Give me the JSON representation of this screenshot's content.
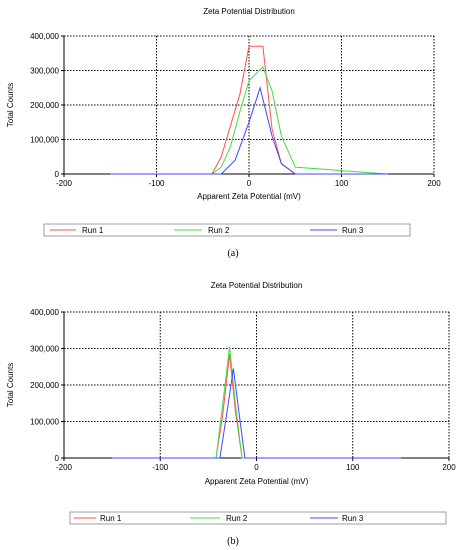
{
  "panels": [
    {
      "label": "(a)"
    },
    {
      "label": "(b)"
    }
  ],
  "chart_data": [
    {
      "type": "line",
      "title": "Zeta Potential Distribution",
      "xlabel": "Apparent Zeta Potential (mV)",
      "ylabel": "Total Counts",
      "xlim": [
        -200,
        200
      ],
      "ylim": [
        0,
        400000
      ],
      "x_ticks": [
        -200,
        -100,
        0,
        100,
        200
      ],
      "x_tick_labels": [
        "-200",
        "-100",
        "0",
        "100",
        "200"
      ],
      "y_ticks": [
        0,
        100000,
        200000,
        300000,
        400000
      ],
      "y_tick_labels": [
        "0",
        "100,000",
        "200,000",
        "300,000",
        "400,000"
      ],
      "grid": true,
      "legend_position": "bottom",
      "series": [
        {
          "name": "Run 1",
          "color": "#ff5050",
          "x": [
            -150,
            -40,
            -30,
            -20,
            -10,
            0,
            15,
            25,
            35,
            50,
            150
          ],
          "y": [
            0,
            0,
            50000,
            140000,
            230000,
            370000,
            370000,
            130000,
            30000,
            0,
            0
          ]
        },
        {
          "name": "Run 2",
          "color": "#44dd44",
          "x": [
            -150,
            -40,
            -30,
            -20,
            -10,
            0,
            15,
            25,
            35,
            50,
            150
          ],
          "y": [
            0,
            0,
            20000,
            80000,
            180000,
            270000,
            310000,
            240000,
            110000,
            20000,
            0
          ]
        },
        {
          "name": "Run 3",
          "color": "#4444ff",
          "x": [
            -150,
            -30,
            -15,
            0,
            12,
            25,
            35,
            50,
            150
          ],
          "y": [
            0,
            0,
            40000,
            150000,
            250000,
            110000,
            30000,
            0,
            0
          ]
        }
      ]
    },
    {
      "type": "line",
      "title": "Zeta Potential Distribution",
      "xlabel": "Apparent Zeta Potential (mV)",
      "ylabel": "Total Counts",
      "xlim": [
        -200,
        200
      ],
      "ylim": [
        0,
        400000
      ],
      "x_ticks": [
        -200,
        -100,
        0,
        100,
        200
      ],
      "x_tick_labels": [
        "-200",
        "-100",
        "0",
        "100",
        "200"
      ],
      "y_ticks": [
        0,
        100000,
        200000,
        300000,
        400000
      ],
      "y_tick_labels": [
        "0",
        "100,000",
        "200,000",
        "300,000",
        "400,000"
      ],
      "grid": true,
      "legend_position": "bottom",
      "series": [
        {
          "name": "Run 1",
          "color": "#ff5050",
          "x": [
            -150,
            -42,
            -35,
            -28,
            -22,
            -15,
            150
          ],
          "y": [
            0,
            0,
            120000,
            285000,
            130000,
            0,
            0
          ]
        },
        {
          "name": "Run  2",
          "color": "#44dd44",
          "x": [
            -150,
            -42,
            -35,
            -28,
            -22,
            -15,
            150
          ],
          "y": [
            0,
            0,
            150000,
            305000,
            150000,
            0,
            0
          ]
        },
        {
          "name": "Run  3",
          "color": "#4444ff",
          "x": [
            -150,
            -38,
            -31,
            -24,
            -18,
            -12,
            150
          ],
          "y": [
            0,
            0,
            120000,
            245000,
            120000,
            0,
            0
          ]
        }
      ]
    }
  ]
}
